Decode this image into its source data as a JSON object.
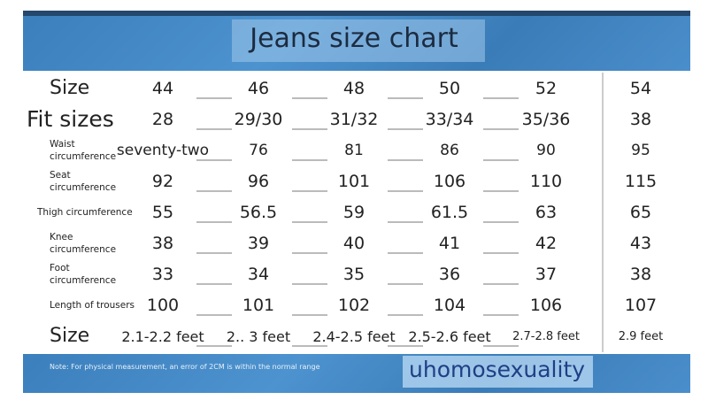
{
  "header": {
    "title": "Jeans size chart"
  },
  "table": {
    "rows": [
      {
        "label": "Size",
        "values": [
          44,
          46,
          48,
          50,
          52,
          54
        ]
      },
      {
        "label": "Fit sizes",
        "values": [
          28,
          "29/30",
          "31/32",
          "33/34",
          "35/36",
          38
        ]
      },
      {
        "label": "Waist circumference",
        "values": [
          "seventy-two",
          76,
          81,
          86,
          90,
          95
        ]
      },
      {
        "label": "Seat circumference",
        "values": [
          92,
          96,
          101,
          106,
          110,
          115
        ]
      },
      {
        "label": "Thigh circumference",
        "values": [
          55,
          56.5,
          59,
          61.5,
          63,
          65
        ]
      },
      {
        "label": "Knee circumference",
        "values": [
          38,
          39,
          40,
          41,
          42,
          43
        ]
      },
      {
        "label": "Foot circumference",
        "values": [
          33,
          34,
          35,
          36,
          37,
          38
        ]
      },
      {
        "label": "Length of trousers",
        "values": [
          100,
          101,
          102,
          104,
          106,
          107
        ]
      },
      {
        "label": "Size",
        "values": [
          "2.1-2.2 feet",
          "2.. 3 feet",
          "2.4-2.5 feet",
          "2.5-2.6 feet",
          "2.7-2.8 feet",
          "2.9 feet"
        ]
      }
    ]
  },
  "footer": {
    "note": "Note: For physical measurement, an error of 2CM is within the normal range",
    "brand": "uhomosexuality"
  }
}
